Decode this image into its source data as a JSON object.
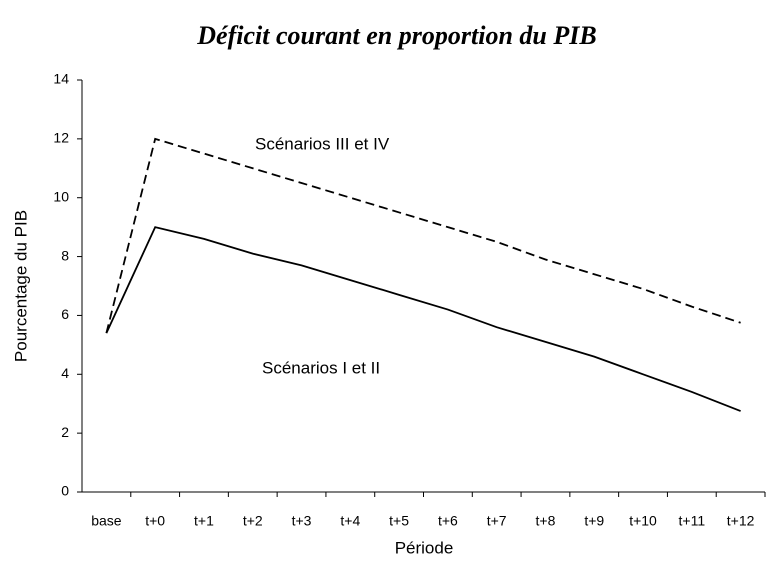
{
  "chart_data": {
    "type": "line",
    "title": "Déficit courant en proportion du PIB",
    "x_label": "Période",
    "y_label": "Pourcentage du PIB",
    "categories": [
      "base",
      "t+0",
      "t+1",
      "t+2",
      "t+3",
      "t+4",
      "t+5",
      "t+6",
      "t+7",
      "t+8",
      "t+9",
      "t+10",
      "t+11",
      "t+12"
    ],
    "series": [
      {
        "name": "Scénarios III et IV",
        "color": "#000000",
        "dash": true,
        "values": [
          5.4,
          12.0,
          11.5,
          11.0,
          10.5,
          10.0,
          9.5,
          9.0,
          8.5,
          7.9,
          7.4,
          6.9,
          6.3,
          5.75
        ]
      },
      {
        "name": "Scénarios I et II",
        "color": "#000000",
        "dash": false,
        "values": [
          5.4,
          9.0,
          8.6,
          8.1,
          7.7,
          7.2,
          6.7,
          6.2,
          5.6,
          5.1,
          4.6,
          4.0,
          3.4,
          2.75
        ]
      }
    ],
    "ylim": [
      0,
      14
    ],
    "yticks": [
      0,
      2,
      4,
      6,
      8,
      10,
      12,
      14
    ],
    "grid": false
  }
}
